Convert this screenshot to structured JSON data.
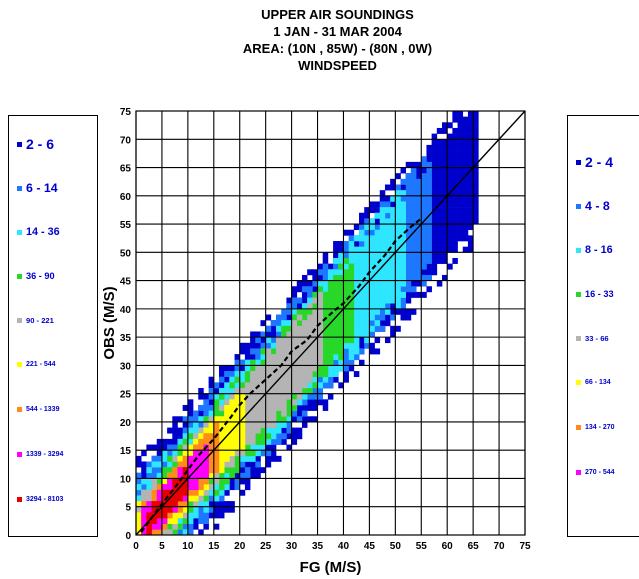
{
  "title": [
    "UPPER AIR SOUNDINGS",
    "1 JAN - 31 MAR 2004",
    "AREA: (10N , 85W) - (80N , 0W)",
    "WINDSPEED"
  ],
  "legend_left": [
    {
      "label": "2 - 6",
      "color": "#0000cc"
    },
    {
      "label": "6 - 14",
      "color": "#1e78ff"
    },
    {
      "label": "14 - 36",
      "color": "#2ee6ff"
    },
    {
      "label": "36 - 90",
      "color": "#28d828"
    },
    {
      "label": "90 - 221",
      "color": "#b4b4b4"
    },
    {
      "label": "221 - 544",
      "color": "#ffff00"
    },
    {
      "label": "544 - 1339",
      "color": "#ff8c1a"
    },
    {
      "label": "1339 - 3294",
      "color": "#ff00ff"
    },
    {
      "label": "3294 - 8103",
      "color": "#e60000"
    }
  ],
  "legend_right": [
    {
      "label": "2 - 4",
      "color": "#0000cc"
    },
    {
      "label": "4 - 8",
      "color": "#1e78ff"
    },
    {
      "label": "8 - 16",
      "color": "#2ee6ff"
    },
    {
      "label": "16 - 33",
      "color": "#28d828"
    },
    {
      "label": "33 - 66",
      "color": "#b4b4b4"
    },
    {
      "label": "66 - 134",
      "color": "#ffff00"
    },
    {
      "label": "134 - 270",
      "color": "#ff8c1a"
    },
    {
      "label": "270 - 544",
      "color": "#ff00ff"
    }
  ],
  "chart_data": {
    "type": "heatmap",
    "title": "UPPER AIR SOUNDINGS 1 JAN - 31 MAR 2004 AREA: (10N , 85W) - (80N , 0W) WINDSPEED",
    "xlabel": "FG (M/S)",
    "ylabel": "OBS (M/S)",
    "xlim": [
      0,
      75
    ],
    "ylim": [
      0,
      75
    ],
    "x_ticks": [
      0,
      5,
      10,
      15,
      20,
      25,
      30,
      35,
      40,
      45,
      50,
      55,
      60,
      65,
      70,
      75
    ],
    "y_ticks": [
      0,
      5,
      10,
      15,
      20,
      25,
      30,
      35,
      40,
      45,
      50,
      55,
      60,
      65,
      70,
      75
    ],
    "grid": true,
    "bin_size": 1,
    "series": [
      {
        "kind": "diagonal",
        "x": [
          0,
          75
        ],
        "y": [
          0,
          75
        ],
        "color": "#000000",
        "dash": false
      },
      {
        "kind": "binned-mean",
        "x": [
          1,
          3,
          5,
          8,
          10,
          12,
          15,
          18,
          20,
          22,
          25,
          28,
          30,
          33,
          35,
          38,
          40,
          43,
          45,
          48,
          50,
          53,
          55
        ],
        "y": [
          0.5,
          3,
          5.5,
          9,
          11.5,
          14,
          17,
          20.5,
          23,
          25,
          27.5,
          30,
          32.5,
          34.5,
          37,
          39.5,
          41,
          44,
          46.5,
          49.5,
          52,
          54.5,
          56
        ],
        "color": "#000000",
        "dash": true
      }
    ],
    "density_bands": [
      {
        "color": "#e60000",
        "halfwidth": [
          2.0,
          1.0
        ],
        "x_range": [
          2,
          10
        ]
      },
      {
        "color": "#ff00ff",
        "halfwidth": [
          3.0,
          1.5
        ],
        "x_range": [
          1,
          14
        ]
      },
      {
        "color": "#ff8c1a",
        "halfwidth": [
          4.0,
          2.0
        ],
        "x_range": [
          1,
          16
        ]
      },
      {
        "color": "#ffff00",
        "halfwidth": [
          5.0,
          2.5
        ],
        "x_range": [
          0,
          21
        ]
      },
      {
        "color": "#b4b4b4",
        "halfwidth": [
          6.0,
          3.0
        ],
        "x_range": [
          0,
          36
        ]
      },
      {
        "color": "#28d828",
        "halfwidth": [
          7.5,
          4.0
        ],
        "x_range": [
          0,
          42
        ]
      },
      {
        "color": "#2ee6ff",
        "halfwidth": [
          9.0,
          5.0
        ],
        "x_range": [
          0,
          52
        ]
      },
      {
        "color": "#1e78ff",
        "halfwidth": [
          11.0,
          6.0
        ],
        "x_range": [
          0,
          57
        ]
      },
      {
        "color": "#0000cc",
        "halfwidth": [
          14.0,
          8.0
        ],
        "x_range": [
          0,
          66
        ]
      }
    ]
  }
}
